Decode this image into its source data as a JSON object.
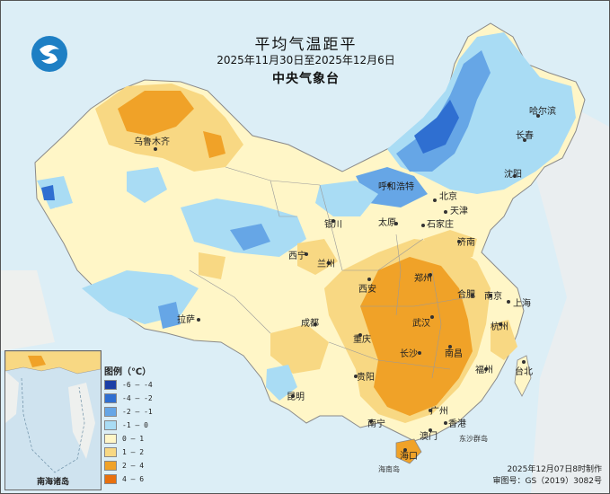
{
  "header": {
    "title": "平均气温距平",
    "date_range": "2025年11月30日至2025年12月6日",
    "organization": "中央气象台"
  },
  "legend": {
    "title": "图例（℃）",
    "items": [
      {
        "label": "-6 — -4",
        "color": "#1c3fa6"
      },
      {
        "label": "-4 — -2",
        "color": "#2f6fd1"
      },
      {
        "label": "-2 — -1",
        "color": "#66a6e6"
      },
      {
        "label": "-1 — 0",
        "color": "#a9dcf4"
      },
      {
        "label": "0 — 1",
        "color": "#fff6c7"
      },
      {
        "label": "1 — 2",
        "color": "#f8d883"
      },
      {
        "label": "2 — 4",
        "color": "#f0a228"
      },
      {
        "label": "4 — 6",
        "color": "#e8700e"
      }
    ]
  },
  "map": {
    "cities": [
      "乌鲁木齐",
      "哈尔滨",
      "长春",
      "沈阳",
      "呼和浩特",
      "北京",
      "天津",
      "石家庄",
      "太原",
      "济南",
      "银川",
      "西宁",
      "兰州",
      "西安",
      "郑州",
      "合肥",
      "南京",
      "上海",
      "武汉",
      "杭州",
      "拉萨",
      "成都",
      "重庆",
      "长沙",
      "南昌",
      "福州",
      "贵阳",
      "台北",
      "昆明",
      "南宁",
      "广州",
      "香港",
      "澳门",
      "海口"
    ],
    "regions": [
      "东沙群岛",
      "海南岛",
      "南海诸岛"
    ],
    "inset_label": "南海诸岛"
  },
  "footer": {
    "made": "2025年12月07日8时制作",
    "approval": "审图号：GS（2019）3082号"
  }
}
